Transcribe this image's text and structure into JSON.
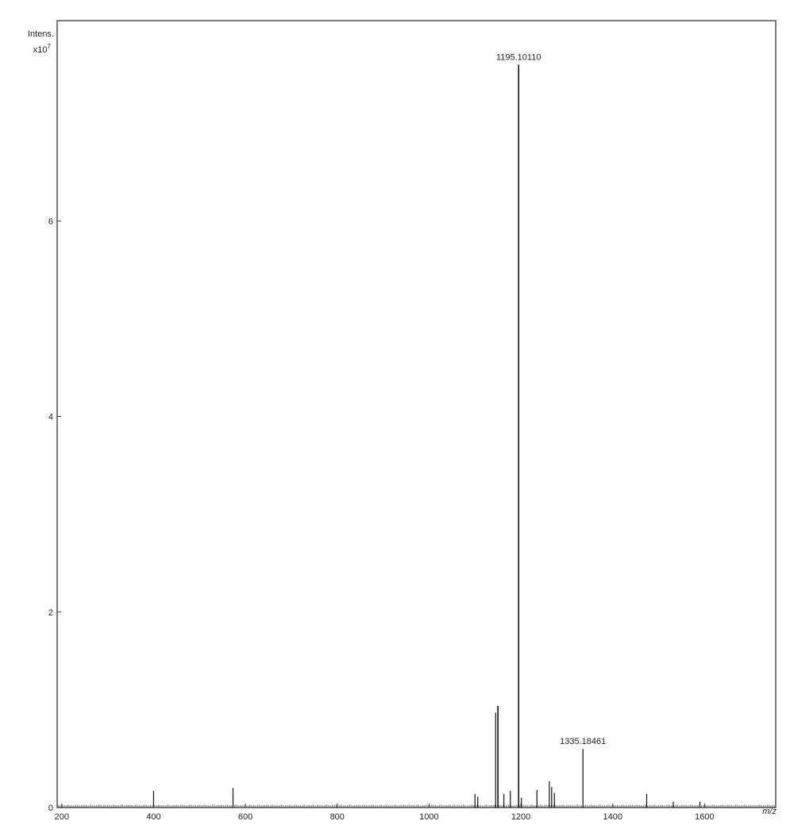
{
  "chart_data": {
    "type": "bar",
    "ylabel": "Intens.",
    "y_multiplier_base": "x10",
    "y_multiplier_exponent": "7",
    "xlabel": "m/z",
    "xlim": [
      190,
      1755
    ],
    "ylim": [
      0,
      8.05
    ],
    "x_ticks": [
      200,
      400,
      600,
      800,
      1000,
      1200,
      1400,
      1600
    ],
    "y_ticks": [
      0,
      2,
      4,
      6
    ],
    "grid": false,
    "peaks": [
      {
        "x": 400,
        "y": 0.17
      },
      {
        "x": 573,
        "y": 0.2
      },
      {
        "x": 1100,
        "y": 0.14
      },
      {
        "x": 1106,
        "y": 0.11
      },
      {
        "x": 1145,
        "y": 0.97
      },
      {
        "x": 1150,
        "y": 1.04
      },
      {
        "x": 1163,
        "y": 0.14
      },
      {
        "x": 1177,
        "y": 0.17
      },
      {
        "x": 1195.1011,
        "y": 7.6
      },
      {
        "x": 1201,
        "y": 0.1
      },
      {
        "x": 1235,
        "y": 0.18
      },
      {
        "x": 1262,
        "y": 0.27
      },
      {
        "x": 1267,
        "y": 0.21
      },
      {
        "x": 1273,
        "y": 0.15
      },
      {
        "x": 1335.18461,
        "y": 0.6
      },
      {
        "x": 1474,
        "y": 0.14
      },
      {
        "x": 1532,
        "y": 0.06
      },
      {
        "x": 1590,
        "y": 0.06
      }
    ],
    "annotations": [
      {
        "x": 1195.1011,
        "y": 7.6,
        "text": "1195.10110"
      },
      {
        "x": 1335.18461,
        "y": 0.6,
        "text": "1335.18461"
      }
    ]
  }
}
